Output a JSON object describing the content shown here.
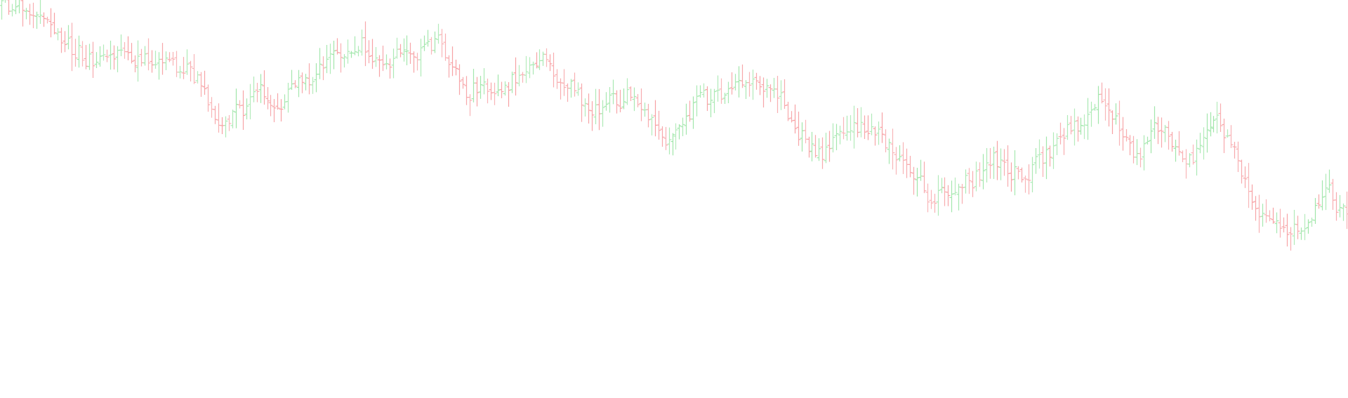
{
  "chart_data": {
    "type": "ohlc",
    "title": "",
    "xlabel": "",
    "ylabel": "",
    "grid": false,
    "legend": "none",
    "ylim": [
      0,
      567
    ],
    "colors": {
      "up": "#9ee6a8",
      "down": "#f7a0a3",
      "background": "#ffffff"
    },
    "bar_count": 386,
    "path_anchors": [
      [
        0,
        562
      ],
      [
        20,
        560
      ],
      [
        30,
        557
      ],
      [
        40,
        552
      ],
      [
        50,
        548
      ],
      [
        60,
        543
      ],
      [
        70,
        522
      ],
      [
        80,
        516
      ],
      [
        90,
        505
      ],
      [
        100,
        498
      ],
      [
        110,
        492
      ],
      [
        120,
        478
      ],
      [
        135,
        485
      ],
      [
        150,
        488
      ],
      [
        165,
        487
      ],
      [
        180,
        484
      ],
      [
        190,
        480
      ],
      [
        200,
        477
      ],
      [
        210,
        483
      ],
      [
        225,
        482
      ],
      [
        240,
        476
      ],
      [
        255,
        470
      ],
      [
        270,
        461
      ],
      [
        285,
        450
      ],
      [
        292,
        412
      ],
      [
        300,
        398
      ],
      [
        310,
        382
      ],
      [
        320,
        392
      ],
      [
        330,
        408
      ],
      [
        345,
        412
      ],
      [
        360,
        430
      ],
      [
        372,
        441
      ],
      [
        380,
        418
      ],
      [
        388,
        405
      ],
      [
        398,
        420
      ],
      [
        410,
        446
      ],
      [
        422,
        452
      ],
      [
        432,
        465
      ],
      [
        440,
        446
      ],
      [
        450,
        470
      ],
      [
        460,
        480
      ],
      [
        470,
        500
      ],
      [
        480,
        490
      ],
      [
        490,
        484
      ],
      [
        502,
        498
      ],
      [
        512,
        506
      ],
      [
        522,
        493
      ],
      [
        532,
        478
      ],
      [
        542,
        472
      ],
      [
        552,
        480
      ],
      [
        562,
        498
      ],
      [
        572,
        501
      ],
      [
        580,
        496
      ],
      [
        590,
        490
      ],
      [
        600,
        498
      ],
      [
        610,
        505
      ],
      [
        622,
        510
      ],
      [
        632,
        493
      ],
      [
        644,
        470
      ],
      [
        656,
        445
      ],
      [
        664,
        432
      ],
      [
        676,
        442
      ],
      [
        690,
        446
      ],
      [
        705,
        444
      ],
      [
        720,
        446
      ],
      [
        735,
        458
      ],
      [
        750,
        468
      ],
      [
        760,
        476
      ],
      [
        772,
        480
      ],
      [
        782,
        468
      ],
      [
        796,
        454
      ],
      [
        810,
        442
      ],
      [
        822,
        430
      ],
      [
        832,
        420
      ],
      [
        846,
        410
      ],
      [
        860,
        414
      ],
      [
        870,
        430
      ],
      [
        884,
        420
      ],
      [
        895,
        436
      ],
      [
        903,
        423
      ],
      [
        912,
        404
      ],
      [
        924,
        398
      ],
      [
        935,
        375
      ],
      [
        945,
        360
      ],
      [
        955,
        380
      ],
      [
        966,
        392
      ],
      [
        978,
        404
      ],
      [
        990,
        424
      ],
      [
        1000,
        430
      ],
      [
        1012,
        425
      ],
      [
        1024,
        430
      ],
      [
        1034,
        448
      ],
      [
        1046,
        452
      ],
      [
        1058,
        450
      ],
      [
        1070,
        444
      ],
      [
        1082,
        446
      ],
      [
        1094,
        440
      ],
      [
        1106,
        430
      ],
      [
        1114,
        418
      ],
      [
        1124,
        396
      ],
      [
        1136,
        376
      ],
      [
        1146,
        364
      ],
      [
        1156,
        351
      ],
      [
        1168,
        342
      ],
      [
        1180,
        356
      ],
      [
        1192,
        370
      ],
      [
        1202,
        382
      ],
      [
        1212,
        392
      ],
      [
        1224,
        386
      ],
      [
        1236,
        380
      ],
      [
        1248,
        374
      ],
      [
        1258,
        360
      ],
      [
        1270,
        346
      ],
      [
        1280,
        341
      ],
      [
        1290,
        332
      ],
      [
        1302,
        316
      ],
      [
        1312,
        300
      ],
      [
        1324,
        276
      ],
      [
        1336,
        300
      ],
      [
        1348,
        282
      ],
      [
        1360,
        296
      ],
      [
        1370,
        312
      ],
      [
        1380,
        306
      ],
      [
        1392,
        318
      ],
      [
        1404,
        330
      ],
      [
        1414,
        342
      ],
      [
        1426,
        327
      ],
      [
        1438,
        318
      ],
      [
        1450,
        322
      ],
      [
        1462,
        312
      ],
      [
        1474,
        338
      ],
      [
        1486,
        346
      ],
      [
        1498,
        356
      ],
      [
        1510,
        374
      ],
      [
        1520,
        386
      ],
      [
        1530,
        384
      ],
      [
        1540,
        396
      ],
      [
        1552,
        412
      ],
      [
        1562,
        422
      ],
      [
        1574,
        414
      ],
      [
        1584,
        400
      ],
      [
        1596,
        382
      ],
      [
        1606,
        362
      ],
      [
        1618,
        342
      ],
      [
        1630,
        368
      ],
      [
        1642,
        392
      ],
      [
        1654,
        382
      ],
      [
        1666,
        356
      ],
      [
        1678,
        346
      ],
      [
        1690,
        336
      ],
      [
        1700,
        346
      ],
      [
        1712,
        362
      ],
      [
        1722,
        392
      ],
      [
        1734,
        392
      ],
      [
        1746,
        374
      ],
      [
        1756,
        348
      ],
      [
        1766,
        312
      ],
      [
        1778,
        296
      ],
      [
        1788,
        266
      ],
      [
        1798,
        262
      ],
      [
        1810,
        256
      ],
      [
        1820,
        246
      ],
      [
        1832,
        242
      ],
      [
        1844,
        236
      ],
      [
        1856,
        232
      ],
      [
        1868,
        262
      ],
      [
        1878,
        286
      ],
      [
        1888,
        300
      ],
      [
        1898,
        272
      ],
      [
        1908,
        264
      ],
      [
        1920,
        256
      ]
    ]
  }
}
